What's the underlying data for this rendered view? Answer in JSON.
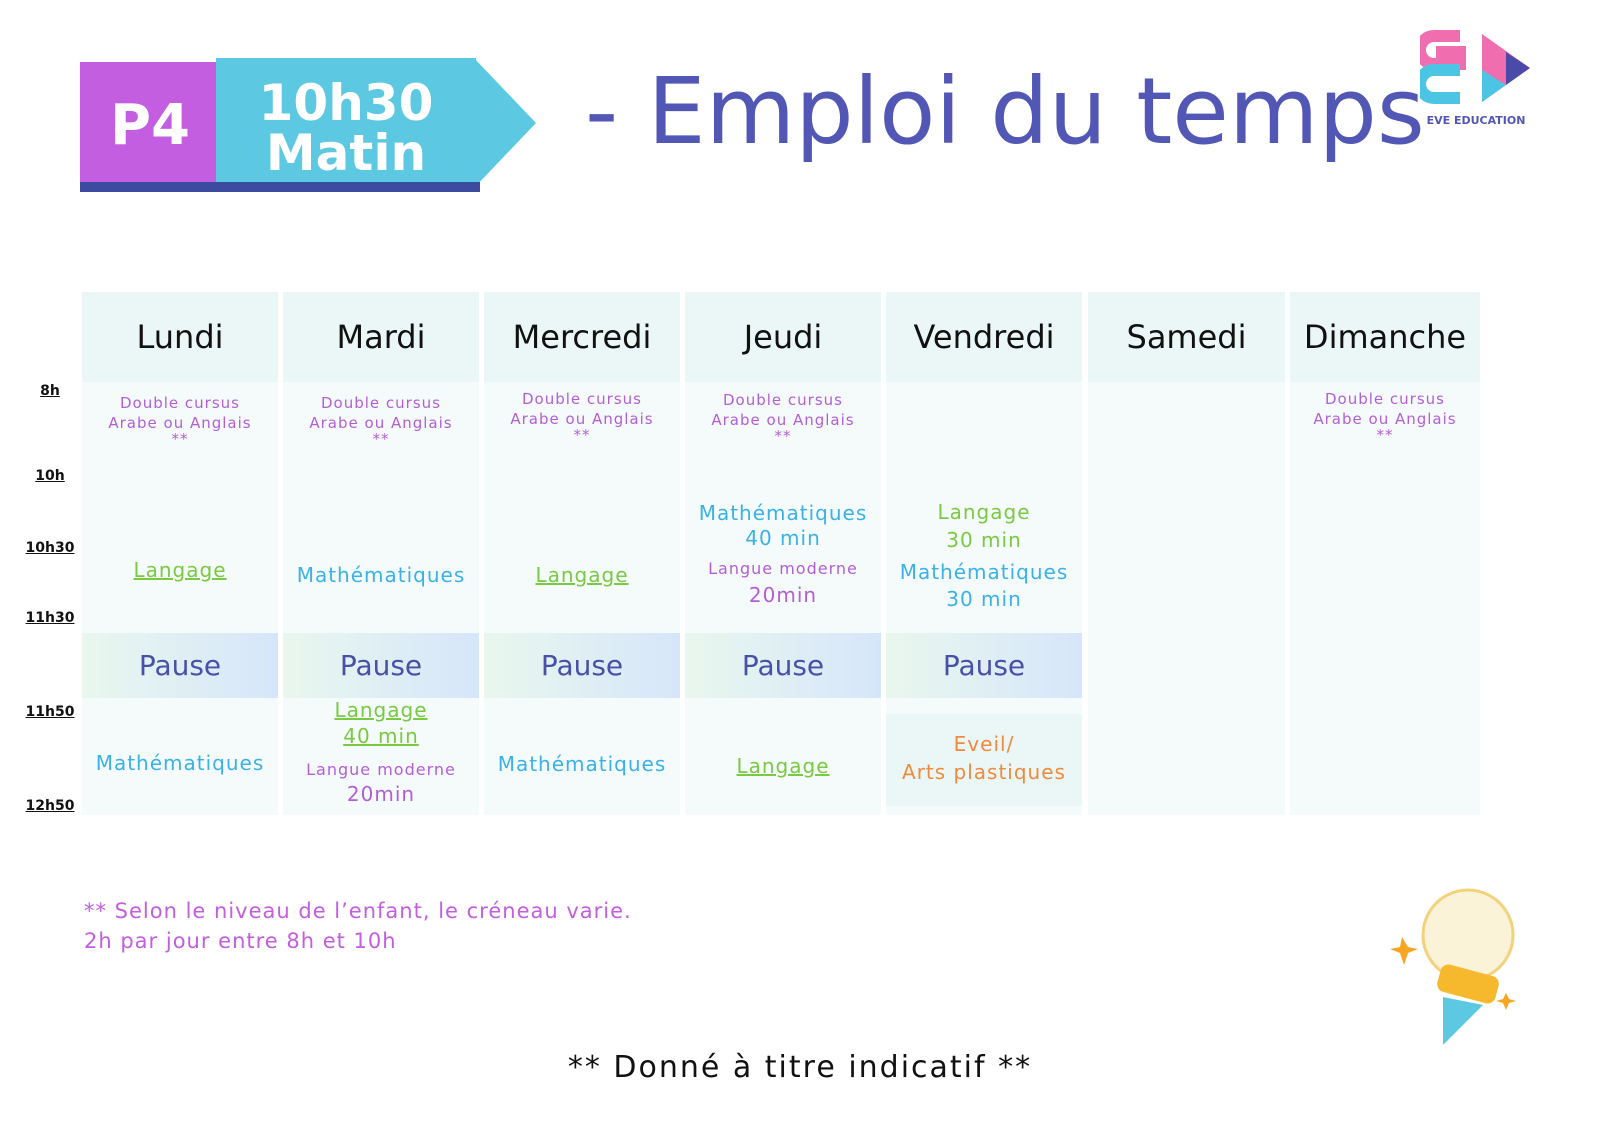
{
  "header": {
    "level": "P4",
    "time": "10h30",
    "period": "Matin",
    "title": "- Emploi du temps",
    "logo_text": "EVE EDUCATION"
  },
  "times": [
    "8h",
    "10h",
    "10h30",
    "11h30",
    "11h50",
    "12h50"
  ],
  "days": [
    {
      "name": "Lundi"
    },
    {
      "name": "Mardi"
    },
    {
      "name": "Mercredi"
    },
    {
      "name": "Jeudi"
    },
    {
      "name": "Vendredi"
    },
    {
      "name": "Samedi"
    },
    {
      "name": "Dimanche"
    }
  ],
  "labels": {
    "dc1": "Double cursus",
    "dc2": "Arabe ou Anglais",
    "stars": "**",
    "langage": "Langage",
    "maths": "Mathématiques",
    "pause": "Pause",
    "min40": "40 min",
    "min30": "30 min",
    "lm": "Langue moderne",
    "min20": "20min",
    "eveil": "Eveil/",
    "arts": "Arts plastiques"
  },
  "notes": {
    "line1": "** Selon le niveau de l’enfant, le créneau varie.",
    "line2": "2h par jour entre 8h et 10h"
  },
  "footer": "** Donné à titre indicatif **",
  "colors": {
    "title": "#5257b5",
    "purple": "#b45ed6",
    "blue": "#3ab2e6",
    "green": "#7ac943",
    "orange": "#f08a3c",
    "header_bg": "#eaf7f6"
  }
}
